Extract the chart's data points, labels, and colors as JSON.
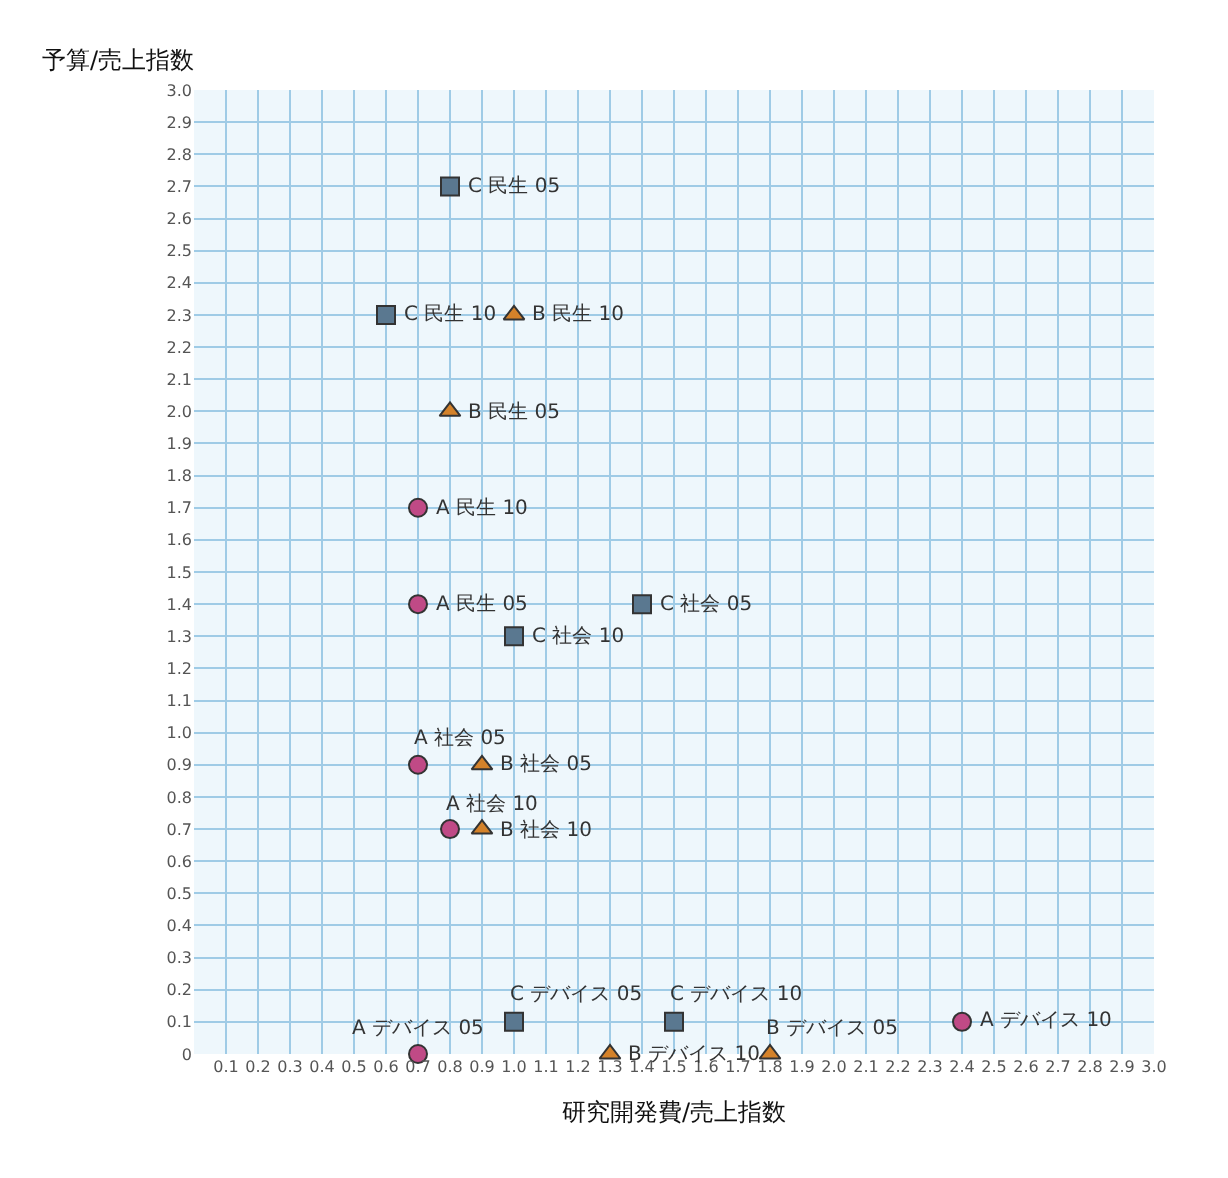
{
  "chart_data": {
    "type": "scatter",
    "xlabel": "研究開発費/売上指数",
    "ylabel": "予算/売上指数",
    "xlim": [
      0,
      3.0
    ],
    "ylim": [
      0,
      3.0
    ],
    "xticks": [
      0.1,
      0.2,
      0.3,
      0.4,
      0.5,
      0.6,
      0.7,
      0.8,
      0.9,
      {
        "value": 1,
        "label": "1.0"
      },
      1.1,
      1.2,
      1.3,
      1.4,
      1.5,
      1.6,
      1.7,
      1.8,
      1.9,
      {
        "value": 2,
        "label": "2.0"
      },
      2.1,
      2.2,
      2.3,
      2.4,
      2.5,
      2.6,
      2.7,
      2.8,
      2.9,
      {
        "value": 3,
        "label": "3.0"
      }
    ],
    "yticks": [
      0,
      0.1,
      0.2,
      0.3,
      0.4,
      0.5,
      0.6,
      0.7,
      0.8,
      0.9,
      {
        "value": 1,
        "label": "1.0"
      },
      1.1,
      1.2,
      1.3,
      1.4,
      1.5,
      1.6,
      1.7,
      1.8,
      1.9,
      {
        "value": 2,
        "label": "2.0"
      },
      2.1,
      2.2,
      2.3,
      2.4,
      2.5,
      2.6,
      2.7,
      2.8,
      2.9,
      {
        "value": 3,
        "label": "3.0"
      }
    ],
    "grid": true,
    "series": [
      {
        "color": "#c04a86",
        "marker": "circle",
        "x": [
          0.7,
          0.7,
          0.7,
          0.8,
          0.7,
          2.4
        ],
        "values": [
          1.7,
          1.4,
          0.9,
          0.7,
          0,
          0.1
        ]
      },
      {
        "color": "#d4822a",
        "marker": "triangle",
        "x": [
          1.0,
          0.8,
          0.9,
          0.9,
          1.8,
          1.3
        ],
        "values": [
          2.3,
          2.0,
          0.9,
          0.7,
          0,
          0
        ]
      },
      {
        "color": "#5a7890",
        "marker": "square",
        "x": [
          0.8,
          0.6,
          1.4,
          1.0,
          1.0,
          1.5
        ],
        "values": [
          2.7,
          2.3,
          1.4,
          1.3,
          0.1,
          0.1
        ]
      }
    ],
    "annotations": [
      {
        "text": "A 民生 10",
        "x": 0.7,
        "y": 1.7
      },
      {
        "text": "A 民生 05",
        "x": 0.7,
        "y": 1.4
      },
      {
        "text": "A 社会 05",
        "x": 0.7,
        "y": 0.9
      },
      {
        "text": "A 社会 10",
        "x": 0.8,
        "y": 0.7
      },
      {
        "text": "A デバイス 05",
        "x": 0.7,
        "y": 0
      },
      {
        "text": "A デバイス 10",
        "x": 2.4,
        "y": 0.1
      },
      {
        "text": "B 民生 10",
        "x": 1.0,
        "y": 2.3
      },
      {
        "text": "B 民生 05",
        "x": 0.8,
        "y": 2.0
      },
      {
        "text": "B 社会 05",
        "x": 0.9,
        "y": 0.9
      },
      {
        "text": "B 社会 10",
        "x": 0.9,
        "y": 0.7
      },
      {
        "text": "B デバイス 05",
        "x": 1.8,
        "y": 0
      },
      {
        "text": "B デバイス 10",
        "x": 1.3,
        "y": 0
      },
      {
        "text": "C 民生 05",
        "x": 0.8,
        "y": 2.7
      },
      {
        "text": "C 民生 10",
        "x": 0.6,
        "y": 2.3
      },
      {
        "text": "C 社会 05",
        "x": 1.4,
        "y": 1.4
      },
      {
        "text": "C 社会 10",
        "x": 1.0,
        "y": 1.3
      },
      {
        "text": "C デバイス 05",
        "x": 1.0,
        "y": 0.1
      },
      {
        "text": "C デバイス 10",
        "x": 1.5,
        "y": 0.1
      }
    ]
  }
}
